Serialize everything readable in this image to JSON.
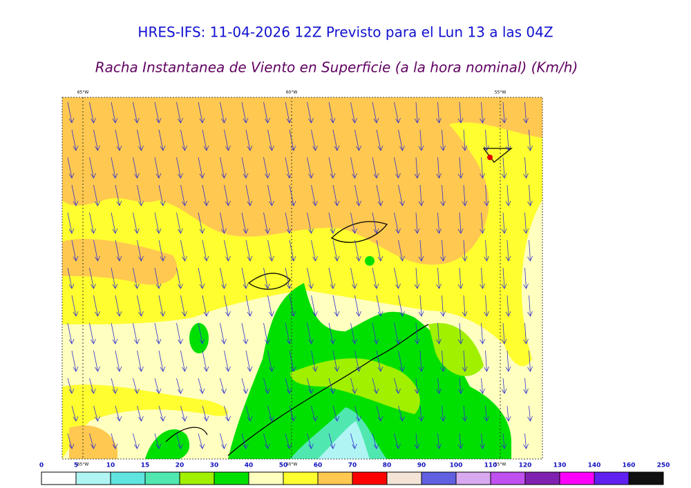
{
  "header": {
    "title": "HRES-IFS: 11-04-2026 12Z Previsto para el Lun 13 a las 04Z",
    "subtitle": "Racha Instantanea de Viento en Superficie (a la hora nominal) (Km/h)"
  },
  "map": {
    "top_labels": [
      "65°W",
      "60°W",
      "55°W"
    ],
    "bottom_labels": [
      "65°W",
      "60°W",
      "55°W"
    ]
  },
  "colorbar": {
    "labels": [
      0,
      5,
      10,
      15,
      20,
      30,
      40,
      50,
      60,
      70,
      80,
      90,
      100,
      110,
      120,
      130,
      140,
      160,
      250
    ],
    "colors": [
      "#ffffff",
      "#b0f4f4",
      "#60e4e0",
      "#50e8b0",
      "#a0f000",
      "#00e000",
      "#ffffc0",
      "#ffff30",
      "#ffc850",
      "#ff0000",
      "#f4e4d8",
      "#6060e0",
      "#d8a8f0",
      "#c050f0",
      "#8020b0",
      "#ff00ff",
      "#6020f0",
      "#101010"
    ]
  }
}
